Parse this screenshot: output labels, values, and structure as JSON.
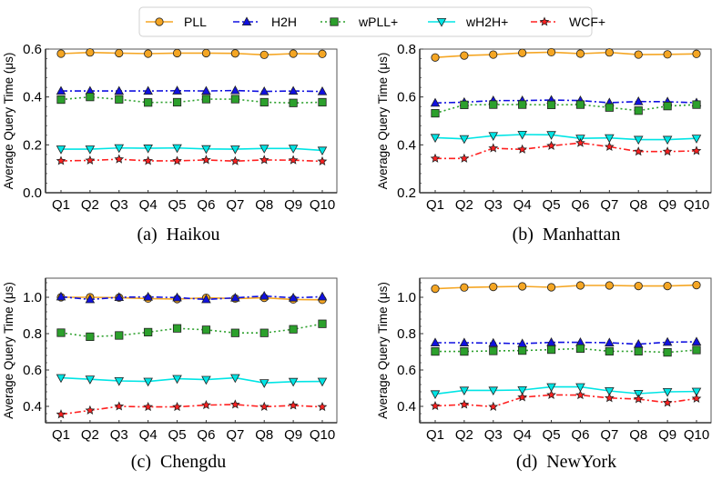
{
  "legend": [
    {
      "name": "PLL",
      "color": "#f5a623",
      "marker": "circle",
      "dash": "solid"
    },
    {
      "name": "H2H",
      "color": "#1010e0",
      "marker": "triangle-up",
      "dash": "dashdot"
    },
    {
      "name": "wPLL+",
      "color": "#2ca02c",
      "marker": "square",
      "dash": "dotted"
    },
    {
      "name": "wH2H+",
      "color": "#00e5e5",
      "marker": "triangle-down",
      "dash": "solid"
    },
    {
      "name": "WCF+",
      "color": "#ff2020",
      "marker": "star",
      "dash": "dashdot"
    }
  ],
  "chart_data": [
    {
      "type": "line",
      "caption": "(a)  Haikou",
      "title": "Haikou",
      "xlabel": "",
      "ylabel": "Average Query Time (μs)",
      "categories": [
        "Q1",
        "Q2",
        "Q3",
        "Q4",
        "Q5",
        "Q6",
        "Q7",
        "Q8",
        "Q9",
        "Q10"
      ],
      "ylim": [
        0.0,
        0.6
      ],
      "yticks": [
        0.0,
        0.2,
        0.4,
        0.6
      ],
      "ytick_labels": [
        "0.0",
        "0.2",
        "0.4",
        "0.6"
      ],
      "grid": false,
      "legend": "top-center (shared)",
      "series": [
        {
          "name": "PLL",
          "values": [
            0.581,
            0.586,
            0.583,
            0.581,
            0.583,
            0.583,
            0.582,
            0.576,
            0.581,
            0.58
          ]
        },
        {
          "name": "H2H",
          "values": [
            0.425,
            0.425,
            0.425,
            0.425,
            0.426,
            0.425,
            0.427,
            0.423,
            0.425,
            0.423
          ]
        },
        {
          "name": "wPLL+",
          "values": [
            0.389,
            0.4,
            0.39,
            0.377,
            0.378,
            0.391,
            0.391,
            0.378,
            0.375,
            0.378
          ]
        },
        {
          "name": "wH2H+",
          "values": [
            0.182,
            0.182,
            0.187,
            0.186,
            0.187,
            0.183,
            0.182,
            0.185,
            0.185,
            0.177
          ]
        },
        {
          "name": "WCF+",
          "values": [
            0.133,
            0.135,
            0.14,
            0.133,
            0.133,
            0.137,
            0.132,
            0.137,
            0.136,
            0.131
          ]
        }
      ]
    },
    {
      "type": "line",
      "caption": "(b)  Manhattan",
      "title": "Manhattan",
      "xlabel": "",
      "ylabel": "Average Query Time (μs)",
      "categories": [
        "Q1",
        "Q2",
        "Q3",
        "Q4",
        "Q5",
        "Q6",
        "Q7",
        "Q8",
        "Q9",
        "Q10"
      ],
      "ylim": [
        0.2,
        0.8
      ],
      "yticks": [
        0.2,
        0.4,
        0.6,
        0.8
      ],
      "ytick_labels": [
        "0.2",
        "0.4",
        "0.6",
        "0.8"
      ],
      "grid": false,
      "legend": "top-center (shared)",
      "series": [
        {
          "name": "PLL",
          "values": [
            0.765,
            0.773,
            0.777,
            0.784,
            0.787,
            0.781,
            0.786,
            0.777,
            0.778,
            0.78
          ]
        },
        {
          "name": "H2H",
          "values": [
            0.575,
            0.578,
            0.585,
            0.585,
            0.587,
            0.585,
            0.576,
            0.581,
            0.58,
            0.576
          ]
        },
        {
          "name": "wPLL+",
          "values": [
            0.532,
            0.567,
            0.568,
            0.568,
            0.567,
            0.568,
            0.556,
            0.543,
            0.562,
            0.568
          ]
        },
        {
          "name": "wH2H+",
          "values": [
            0.43,
            0.425,
            0.438,
            0.443,
            0.442,
            0.427,
            0.429,
            0.422,
            0.422,
            0.427
          ]
        },
        {
          "name": "WCF+",
          "values": [
            0.343,
            0.343,
            0.386,
            0.381,
            0.396,
            0.408,
            0.392,
            0.372,
            0.372,
            0.375
          ]
        }
      ]
    },
    {
      "type": "line",
      "caption": "(c)  Chengdu",
      "title": "Chengdu",
      "xlabel": "",
      "ylabel": "Average Query Time (μs)",
      "categories": [
        "Q1",
        "Q2",
        "Q3",
        "Q4",
        "Q5",
        "Q6",
        "Q7",
        "Q8",
        "Q9",
        "Q10"
      ],
      "ylim": [
        0.31,
        1.105
      ],
      "yticks": [
        0.4,
        0.6,
        0.8,
        1.0
      ],
      "ytick_labels": [
        "0.4",
        "0.6",
        "0.8",
        "1.0"
      ],
      "grid": false,
      "legend": "top-center (shared)",
      "series": [
        {
          "name": "PLL",
          "values": [
            1.0,
            1.0,
            0.998,
            0.993,
            0.99,
            0.997,
            0.993,
            0.997,
            0.988,
            0.986
          ]
        },
        {
          "name": "H2H",
          "values": [
            1.003,
            0.988,
            1.0,
            1.002,
            0.998,
            0.988,
            0.997,
            1.007,
            0.997,
            1.003
          ]
        },
        {
          "name": "wPLL+",
          "values": [
            0.805,
            0.783,
            0.79,
            0.808,
            0.829,
            0.821,
            0.804,
            0.804,
            0.824,
            0.854
          ]
        },
        {
          "name": "wH2H+",
          "values": [
            0.557,
            0.549,
            0.54,
            0.537,
            0.552,
            0.547,
            0.557,
            0.529,
            0.536,
            0.537
          ]
        },
        {
          "name": "WCF+",
          "values": [
            0.356,
            0.378,
            0.4,
            0.397,
            0.397,
            0.407,
            0.41,
            0.398,
            0.405,
            0.397
          ]
        }
      ]
    },
    {
      "type": "line",
      "caption": "(d)  NewYork",
      "title": "NewYork",
      "xlabel": "",
      "ylabel": "Average Query Time (μs)",
      "categories": [
        "Q1",
        "Q2",
        "Q3",
        "Q4",
        "Q5",
        "Q6",
        "Q7",
        "Q8",
        "Q9",
        "Q10"
      ],
      "ylim": [
        0.31,
        1.105
      ],
      "yticks": [
        0.4,
        0.6,
        0.8,
        1.0
      ],
      "ytick_labels": [
        "0.4",
        "0.6",
        "0.8",
        "1.0"
      ],
      "grid": false,
      "legend": "top-center (shared)",
      "series": [
        {
          "name": "PLL",
          "values": [
            1.047,
            1.054,
            1.057,
            1.06,
            1.055,
            1.065,
            1.065,
            1.062,
            1.062,
            1.067
          ]
        },
        {
          "name": "H2H",
          "values": [
            0.75,
            0.75,
            0.748,
            0.745,
            0.752,
            0.752,
            0.75,
            0.742,
            0.753,
            0.755
          ]
        },
        {
          "name": "wPLL+",
          "values": [
            0.702,
            0.702,
            0.705,
            0.707,
            0.712,
            0.718,
            0.703,
            0.703,
            0.697,
            0.71
          ]
        },
        {
          "name": "wH2H+",
          "values": [
            0.468,
            0.488,
            0.488,
            0.49,
            0.507,
            0.507,
            0.485,
            0.47,
            0.48,
            0.482
          ]
        },
        {
          "name": "WCF+",
          "values": [
            0.402,
            0.41,
            0.398,
            0.45,
            0.463,
            0.462,
            0.446,
            0.44,
            0.42,
            0.443
          ]
        }
      ]
    }
  ]
}
